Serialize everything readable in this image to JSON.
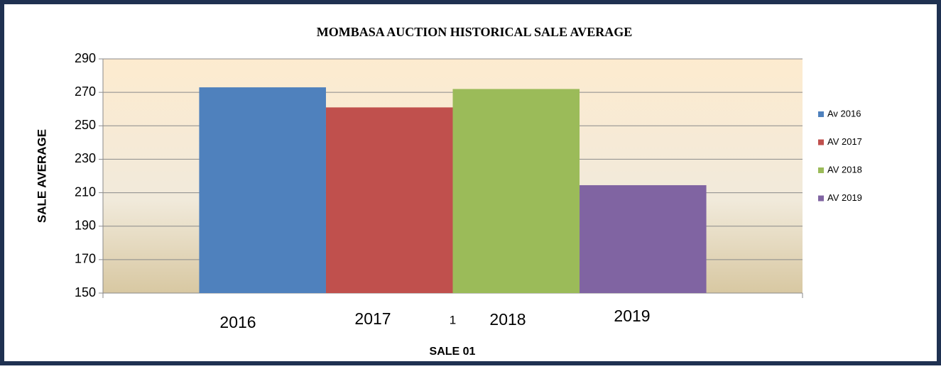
{
  "chart_data": {
    "type": "bar",
    "title": "MOMBASA AUCTION HISTORICAL SALE AVERAGE",
    "xlabel": "SALE 01",
    "ylabel": "SALE AVERAGE",
    "categories": [
      "1"
    ],
    "series": [
      {
        "name": "Av 2016",
        "color": "#4f81bd",
        "values": [
          273
        ]
      },
      {
        "name": "AV 2017",
        "color": "#c0504d",
        "values": [
          261
        ]
      },
      {
        "name": "AV 2018",
        "color": "#9bbb59",
        "values": [
          272
        ]
      },
      {
        "name": "AV 2019",
        "color": "#8064a2",
        "values": [
          214.5
        ]
      }
    ],
    "annotations": [
      "2016",
      "2017",
      "2018",
      "2019"
    ],
    "ylim": [
      150,
      290
    ],
    "yticks": [
      150,
      170,
      190,
      210,
      230,
      250,
      270,
      290
    ],
    "grid": true,
    "legend": "right"
  }
}
